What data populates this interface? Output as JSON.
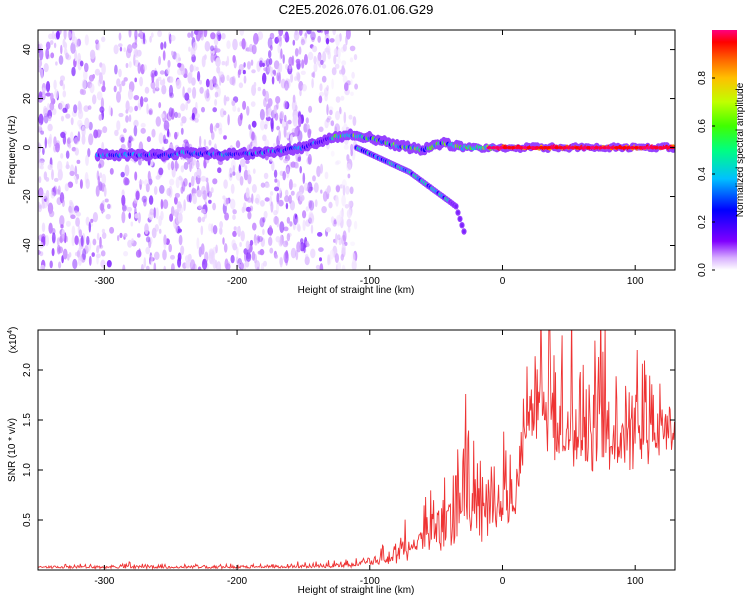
{
  "title": "C2E5.2026.076.01.06.G29",
  "chart_data": [
    {
      "type": "heatmap",
      "title": "C2E5.2026.076.01.06.G29",
      "xlabel": "Height of straight line (km)",
      "ylabel": "Frequency (Hz)",
      "xlim": [
        -350,
        130
      ],
      "ylim": [
        -50,
        48
      ],
      "xticks": [
        -300,
        -200,
        -100,
        0,
        100
      ],
      "yticks": [
        -40,
        -20,
        0,
        20,
        40
      ],
      "colorbar": {
        "label": "Normalized spectral amplitude",
        "range": [
          0,
          1
        ],
        "ticks": [
          "0.0",
          "0.2",
          "0.4",
          "0.6",
          "0.8"
        ],
        "tick_values": [
          0.0,
          0.2,
          0.4,
          0.6,
          0.8
        ],
        "colormap": [
          "#ffffff",
          "#b060ff",
          "#6000ff",
          "#0000ff",
          "#00c0ff",
          "#00ff80",
          "#40ff00",
          "#c0ff00",
          "#ffc000",
          "#ff6000",
          "#ff0000",
          "#ff0080"
        ]
      },
      "features": {
        "noise_region_x": [
          -350,
          -130
        ],
        "main_trace": [
          {
            "x": -305,
            "y": -3
          },
          {
            "x": -280,
            "y": -3
          },
          {
            "x": -250,
            "y": -3
          },
          {
            "x": -240,
            "y": -2
          },
          {
            "x": -210,
            "y": -3
          },
          {
            "x": -180,
            "y": -2
          },
          {
            "x": -150,
            "y": 0
          },
          {
            "x": -130,
            "y": 4
          },
          {
            "x": -115,
            "y": 5
          },
          {
            "x": -100,
            "y": 4
          },
          {
            "x": -80,
            "y": 1
          },
          {
            "x": -60,
            "y": -1
          },
          {
            "x": -45,
            "y": 2
          },
          {
            "x": -30,
            "y": 0
          },
          {
            "x": 0,
            "y": 0
          },
          {
            "x": 50,
            "y": 0
          },
          {
            "x": 130,
            "y": 0
          }
        ],
        "descending_branch": [
          {
            "x": -110,
            "y": 0
          },
          {
            "x": -90,
            "y": -5
          },
          {
            "x": -70,
            "y": -10
          },
          {
            "x": -55,
            "y": -16
          },
          {
            "x": -45,
            "y": -20
          },
          {
            "x": -35,
            "y": -24
          },
          {
            "x": -28,
            "y": -36
          }
        ]
      }
    },
    {
      "type": "line",
      "xlabel": "Height of straight line (km)",
      "ylabel": "SNR (10 * v/v)",
      "yscale_label": "(x10",
      "yscale_exp": "4",
      "yscale_suffix": ")",
      "xlim": [
        -350,
        130
      ],
      "ylim": [
        0,
        2.4
      ],
      "xticks": [
        -300,
        -200,
        -100,
        0,
        100
      ],
      "yticks": [
        0.5,
        1.0,
        1.5,
        2.0
      ],
      "ytick_labels": [
        "0.5",
        "1.0",
        "1.5",
        "2.0"
      ],
      "color": "#ee3333",
      "series": [
        {
          "name": "SNR",
          "envelope": [
            {
              "x": -350,
              "base": 0.02,
              "amp": 0.02
            },
            {
              "x": -280,
              "base": 0.02,
              "amp": 0.05
            },
            {
              "x": -200,
              "base": 0.02,
              "amp": 0.03
            },
            {
              "x": -120,
              "base": 0.03,
              "amp": 0.05
            },
            {
              "x": -100,
              "base": 0.05,
              "amp": 0.12
            },
            {
              "x": -80,
              "base": 0.1,
              "amp": 0.25
            },
            {
              "x": -60,
              "base": 0.2,
              "amp": 0.45
            },
            {
              "x": -40,
              "base": 0.3,
              "amp": 0.7
            },
            {
              "x": -28,
              "base": 0.4,
              "amp": 1.2
            },
            {
              "x": -15,
              "base": 0.35,
              "amp": 0.85
            },
            {
              "x": 0,
              "base": 0.45,
              "amp": 0.6
            },
            {
              "x": 10,
              "base": 0.55,
              "amp": 0.6
            },
            {
              "x": 18,
              "base": 1.3,
              "amp": 0.9
            },
            {
              "x": 30,
              "base": 1.3,
              "amp": 1.05
            },
            {
              "x": 60,
              "base": 1.1,
              "amp": 1.1
            },
            {
              "x": 95,
              "base": 1.1,
              "amp": 1.25
            },
            {
              "x": 130,
              "base": 1.25,
              "amp": 0.6
            }
          ]
        }
      ]
    }
  ]
}
